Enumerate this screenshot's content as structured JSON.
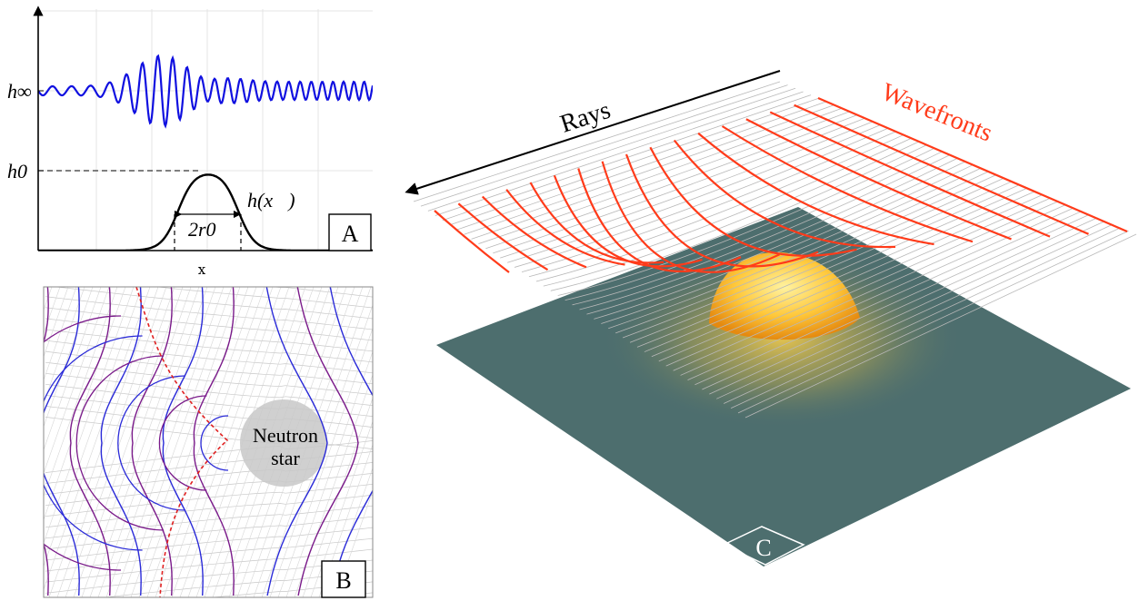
{
  "panel_a": {
    "label": "A",
    "y_labels": {
      "h_inf": "h∞",
      "h_zero": "h0"
    },
    "curve_label": "h(x⃗)",
    "width_label": "2r0",
    "x_axis_label": "x"
  },
  "panel_b": {
    "label": "B",
    "object_label_line1": "Neutron",
    "object_label_line2": "star"
  },
  "panel_c": {
    "label": "C",
    "rays_label": "Rays",
    "wavefronts_label": "Wavefronts"
  },
  "colors": {
    "wave": "#1010e0",
    "profile": "#000000",
    "ray_lines": "#b8b8b8",
    "wavefronts_c": "#ff3b1a",
    "wavefront_blue": "#2a2ad8",
    "wavefront_purple": "#7a1a8a",
    "caustic": "#e02020",
    "plane": "#4d6e6e",
    "star_glow": "#ffd24a"
  }
}
